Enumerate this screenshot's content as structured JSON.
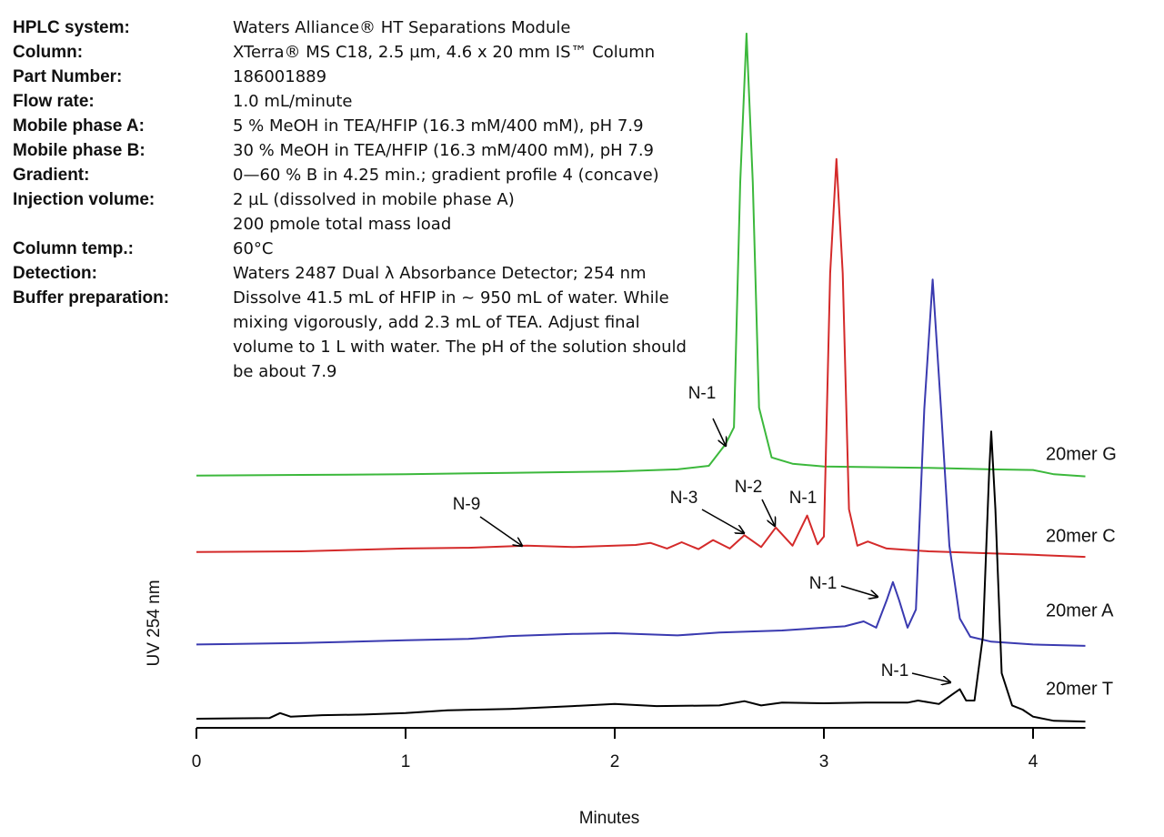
{
  "conditions": [
    {
      "label": "HPLC system:",
      "value": [
        "Waters Alliance® HT Separations Module"
      ]
    },
    {
      "label": "Column:",
      "value": [
        "XTerra® MS C18, 2.5 µm, 4.6 x 20 mm IS™ Column"
      ]
    },
    {
      "label": "Part Number:",
      "value": [
        "186001889"
      ]
    },
    {
      "label": "Flow rate:",
      "value": [
        "1.0 mL/minute"
      ]
    },
    {
      "label": "Mobile phase A:",
      "value": [
        "5 % MeOH in TEA/HFIP (16.3 mM/400 mM), pH 7.9"
      ]
    },
    {
      "label": "Mobile phase B:",
      "value": [
        "30 % MeOH in TEA/HFIP (16.3 mM/400 mM), pH 7.9"
      ]
    },
    {
      "label": "Gradient:",
      "value": [
        "0—60 % B in 4.25 min.; gradient profile 4 (concave)"
      ]
    },
    {
      "label": "Injection volume:",
      "value": [
        "2 µL (dissolved in mobile phase A)",
        "200 pmole total mass load"
      ]
    },
    {
      "label": "Column temp.:",
      "value": [
        "60°C"
      ]
    },
    {
      "label": "Detection:",
      "value": [
        "Waters 2487 Dual λ Absorbance Detector; 254 nm"
      ]
    },
    {
      "label": "Buffer preparation:",
      "value": [
        "Dissolve 41.5 mL of HFIP in ~ 950 mL of water. While",
        "mixing vigorously, add 2.3 mL of TEA. Adjust final",
        "volume to 1 L with water. The pH of the solution should",
        "be about 7.9"
      ]
    }
  ],
  "chart_data": {
    "type": "line",
    "x_label": "Minutes",
    "y_label": "UV 254 nm",
    "xlim": [
      0,
      4.25
    ],
    "xticks": [
      0,
      1,
      2,
      3,
      4
    ],
    "ylim": [
      0,
      100
    ],
    "annotations": [
      "N-1",
      "N-9",
      "N-3",
      "N-2",
      "N-1",
      "N-1",
      "N-1"
    ],
    "series": [
      {
        "name": "20mer G",
        "color": "#3cb83c",
        "x": [
          0,
          0.5,
          1.0,
          1.5,
          2.0,
          2.3,
          2.45,
          2.53,
          2.57,
          2.6,
          2.63,
          2.66,
          2.69,
          2.75,
          2.85,
          3.0,
          3.5,
          3.8,
          4.0,
          4.1,
          4.25
        ],
        "values": [
          36.0,
          36.1,
          36.2,
          36.4,
          36.6,
          36.9,
          37.4,
          40.5,
          42.9,
          77.9,
          99.1,
          77.9,
          45.7,
          38.6,
          37.7,
          37.3,
          37.1,
          36.9,
          36.8,
          36.2,
          35.9
        ]
      },
      {
        "name": "20mer C",
        "color": "#d42a2a",
        "x": [
          0,
          0.5,
          1.0,
          1.3,
          1.58,
          1.8,
          2.0,
          2.1,
          2.17,
          2.25,
          2.32,
          2.4,
          2.47,
          2.55,
          2.62,
          2.7,
          2.77,
          2.85,
          2.92,
          2.97,
          3.0,
          3.03,
          3.06,
          3.09,
          3.12,
          3.16,
          3.21,
          3.3,
          3.5,
          4.0,
          4.25
        ],
        "values": [
          25.1,
          25.2,
          25.6,
          25.7,
          26.0,
          25.8,
          26.0,
          26.1,
          26.4,
          25.6,
          26.5,
          25.5,
          26.8,
          25.6,
          27.5,
          25.8,
          28.6,
          26.0,
          30.3,
          26.2,
          27.3,
          64.9,
          81.2,
          64.9,
          31.2,
          26.0,
          26.6,
          25.6,
          25.2,
          24.7,
          24.4
        ]
      },
      {
        "name": "20mer A",
        "color": "#3a3ab0",
        "x": [
          0,
          0.5,
          1.0,
          1.3,
          1.5,
          1.8,
          2.0,
          2.3,
          2.5,
          2.8,
          3.0,
          3.1,
          3.19,
          3.25,
          3.3,
          3.33,
          3.36,
          3.4,
          3.44,
          3.48,
          3.52,
          3.56,
          3.6,
          3.65,
          3.7,
          3.8,
          4.0,
          4.25
        ],
        "values": [
          11.9,
          12.1,
          12.5,
          12.7,
          13.1,
          13.4,
          13.5,
          13.2,
          13.6,
          13.9,
          14.3,
          14.5,
          15.2,
          14.3,
          18.2,
          20.8,
          18.2,
          14.3,
          16.9,
          45.5,
          64.0,
          45.5,
          26.0,
          15.6,
          13.0,
          12.3,
          11.9,
          11.7
        ]
      },
      {
        "name": "20mer T",
        "color": "#000000",
        "x": [
          0,
          0.35,
          0.4,
          0.45,
          0.6,
          0.8,
          1.0,
          1.2,
          1.5,
          1.8,
          2.0,
          2.2,
          2.5,
          2.62,
          2.7,
          2.8,
          3.0,
          3.2,
          3.4,
          3.45,
          3.55,
          3.62,
          3.65,
          3.68,
          3.72,
          3.76,
          3.79,
          3.8,
          3.82,
          3.85,
          3.9,
          3.95,
          4.0,
          4.1,
          4.25
        ],
        "values": [
          1.3,
          1.4,
          2.1,
          1.6,
          1.8,
          1.9,
          2.1,
          2.5,
          2.7,
          3.1,
          3.4,
          3.1,
          3.2,
          3.8,
          3.2,
          3.6,
          3.5,
          3.6,
          3.6,
          3.9,
          3.4,
          4.9,
          5.5,
          3.9,
          3.9,
          13.0,
          36.4,
          42.3,
          31.2,
          7.8,
          3.2,
          2.6,
          1.6,
          1.0,
          0.9
        ]
      }
    ]
  }
}
